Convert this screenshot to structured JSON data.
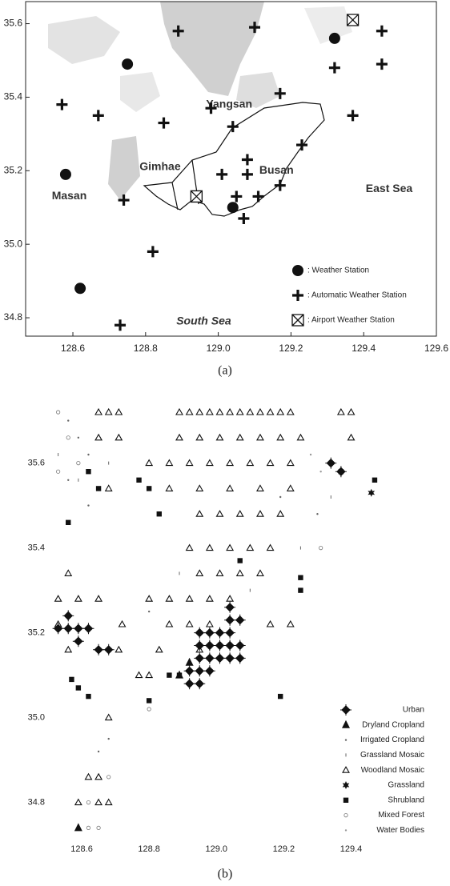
{
  "chart_data": [
    {
      "type": "scatter",
      "caption": "(a)",
      "xlim": [
        128.47,
        129.6
      ],
      "ylim": [
        34.75,
        35.66
      ],
      "xticks": [
        128.6,
        128.8,
        {
          "value": 129,
          "label": "129.0"
        },
        129.2,
        129.4,
        129.6
      ],
      "yticks": [
        34.8,
        {
          "value": 35,
          "label": "35.0"
        },
        35.2,
        35.4,
        35.6
      ],
      "series": [
        {
          "name": ": Weather Station",
          "marker": "circle",
          "color": "#111",
          "x": [
            128.58,
            128.75,
            128.62,
            129.04,
            129.32
          ],
          "y": [
            35.19,
            35.49,
            34.88,
            35.1,
            35.56
          ]
        },
        {
          "name": ": Automatic Weather Station",
          "marker": "plus",
          "color": "#111",
          "x": [
            128.89,
            129.1,
            129.45,
            129.45,
            129.32,
            128.57,
            128.67,
            128.85,
            128.98,
            129.04,
            129.17,
            129.37,
            129.23,
            129.08,
            129.08,
            129.01,
            129.05,
            129.11,
            129.17,
            129.07,
            128.74,
            128.82,
            128.73
          ],
          "y": [
            35.58,
            35.59,
            35.58,
            35.49,
            35.48,
            35.38,
            35.35,
            35.33,
            35.37,
            35.32,
            35.41,
            35.35,
            35.27,
            35.23,
            35.19,
            35.19,
            35.13,
            35.13,
            35.16,
            35.07,
            35.12,
            34.98,
            34.78
          ]
        },
        {
          "name": ": Airport Weather Station",
          "marker": "box-x",
          "color": "#111",
          "x": [
            128.94,
            129.37
          ],
          "y": [
            35.13,
            35.61
          ]
        }
      ],
      "annotations": [
        "Yangsan",
        "Gimhae",
        "Busan",
        "Masan",
        "East Sea",
        "South Sea"
      ]
    },
    {
      "type": "scatter",
      "caption": "(b)",
      "xlim": [
        128.5,
        129.57
      ],
      "ylim": [
        34.72,
        35.72
      ],
      "xticks": [
        128.6,
        128.8,
        {
          "value": 129,
          "label": "129.0"
        },
        129.2,
        129.4
      ],
      "yticks": [
        34.8,
        {
          "value": 35,
          "label": "35.0"
        },
        35.2,
        35.4,
        35.6
      ],
      "series": [
        {
          "name": "Urban",
          "marker": "diamond",
          "color": "#111",
          "x": [
            128.95,
            128.98,
            129.01,
            129.04,
            128.95,
            128.98,
            129.01,
            129.04,
            129.07,
            128.95,
            128.98,
            129.01,
            129.04,
            129.07,
            128.92,
            128.95,
            128.98,
            128.92,
            128.95,
            129.04,
            129.04,
            129.07,
            128.53,
            128.56,
            128.59,
            128.62,
            128.56,
            128.59,
            128.65,
            128.68,
            129.34,
            129.37
          ],
          "y": [
            35.2,
            35.2,
            35.2,
            35.2,
            35.17,
            35.17,
            35.17,
            35.17,
            35.17,
            35.14,
            35.14,
            35.14,
            35.14,
            35.14,
            35.11,
            35.11,
            35.11,
            35.08,
            35.08,
            35.26,
            35.23,
            35.23,
            35.21,
            35.21,
            35.21,
            35.21,
            35.24,
            35.18,
            35.16,
            35.16,
            35.6,
            35.58
          ]
        },
        {
          "name": "Dryland Cropland",
          "marker": "triangle",
          "color": "#111",
          "x": [
            128.89,
            128.92,
            128.59
          ],
          "y": [
            35.1,
            35.13,
            34.74
          ]
        },
        {
          "name": "Irrigated Cropland",
          "marker": "dot",
          "color": "#666",
          "x": [
            128.56,
            128.59,
            128.62,
            128.56,
            128.62,
            129.19,
            128.65,
            128.68,
            129.3,
            128.8
          ],
          "y": [
            35.7,
            35.66,
            35.62,
            35.56,
            35.5,
            35.52,
            34.92,
            34.95,
            35.48,
            35.25
          ]
        },
        {
          "name": "Grassland Mosaic",
          "marker": "tick",
          "color": "#666",
          "x": [
            128.53,
            128.59,
            128.68,
            129.25,
            129.1,
            128.89,
            129.34
          ],
          "y": [
            35.62,
            35.56,
            35.6,
            35.4,
            35.3,
            35.34,
            35.52
          ]
        },
        {
          "name": "Woodland Mosaic",
          "marker": "open-triangle",
          "color": "#111",
          "x": [
            128.65,
            128.68,
            128.71,
            128.89,
            128.92,
            128.95,
            128.98,
            129.01,
            129.04,
            129.07,
            129.1,
            129.13,
            129.16,
            129.19,
            129.22,
            129.37,
            129.4,
            128.65,
            128.71,
            128.89,
            128.95,
            129.01,
            129.07,
            129.13,
            129.19,
            129.25,
            129.4,
            128.8,
            128.86,
            128.92,
            128.98,
            129.04,
            129.1,
            129.16,
            129.22,
            128.68,
            128.86,
            128.95,
            129.04,
            129.13,
            129.22,
            128.95,
            129.01,
            129.07,
            129.13,
            129.19,
            128.92,
            128.98,
            129.04,
            129.1,
            129.16,
            128.56,
            128.95,
            129.01,
            129.07,
            129.13,
            128.53,
            128.59,
            128.65,
            128.8,
            128.86,
            128.92,
            128.98,
            129.04,
            128.53,
            128.72,
            128.86,
            128.92,
            128.98,
            129.16,
            129.22,
            128.56,
            128.71,
            128.83,
            128.95,
            128.77,
            128.8,
            128.68,
            128.62,
            128.65,
            128.59,
            128.65,
            128.68
          ],
          "y": [
            35.72,
            35.72,
            35.72,
            35.72,
            35.72,
            35.72,
            35.72,
            35.72,
            35.72,
            35.72,
            35.72,
            35.72,
            35.72,
            35.72,
            35.72,
            35.72,
            35.72,
            35.66,
            35.66,
            35.66,
            35.66,
            35.66,
            35.66,
            35.66,
            35.66,
            35.66,
            35.66,
            35.6,
            35.6,
            35.6,
            35.6,
            35.6,
            35.6,
            35.6,
            35.6,
            35.54,
            35.54,
            35.54,
            35.54,
            35.54,
            35.54,
            35.48,
            35.48,
            35.48,
            35.48,
            35.48,
            35.4,
            35.4,
            35.4,
            35.4,
            35.4,
            35.34,
            35.34,
            35.34,
            35.34,
            35.34,
            35.28,
            35.28,
            35.28,
            35.28,
            35.28,
            35.28,
            35.28,
            35.28,
            35.22,
            35.22,
            35.22,
            35.22,
            35.22,
            35.22,
            35.22,
            35.16,
            35.16,
            35.16,
            35.16,
            35.1,
            35.1,
            35.0,
            34.86,
            34.86,
            34.8,
            34.8,
            34.8
          ]
        },
        {
          "name": "Grassland",
          "marker": "star",
          "color": "#111",
          "x": [
            129.46
          ],
          "y": [
            35.53
          ]
        },
        {
          "name": "Shrubland",
          "marker": "square",
          "color": "#111",
          "x": [
            128.56,
            128.62,
            128.65,
            128.77,
            128.8,
            128.83,
            129.07,
            129.25,
            129.25,
            128.57,
            128.59,
            128.62,
            128.86,
            128.89,
            128.8,
            129.19,
            129.37,
            129.47
          ],
          "y": [
            35.46,
            35.58,
            35.54,
            35.56,
            35.54,
            35.48,
            35.37,
            35.33,
            35.3,
            35.09,
            35.07,
            35.05,
            35.1,
            35.1,
            35.04,
            35.05,
            35.58,
            35.56
          ]
        },
        {
          "name": "Mixed Forest",
          "marker": "ring",
          "color": "#777",
          "x": [
            128.53,
            128.56,
            128.59,
            128.53,
            128.62,
            128.65,
            128.62,
            128.68,
            128.8,
            129.31
          ],
          "y": [
            35.72,
            35.66,
            35.6,
            35.58,
            34.8,
            34.74,
            34.74,
            34.86,
            35.02,
            35.4
          ]
        },
        {
          "name": "Water Bodies",
          "marker": "dot",
          "color": "#999",
          "x": [
            129.28,
            129.31
          ],
          "y": [
            35.62,
            35.58
          ]
        }
      ]
    }
  ]
}
